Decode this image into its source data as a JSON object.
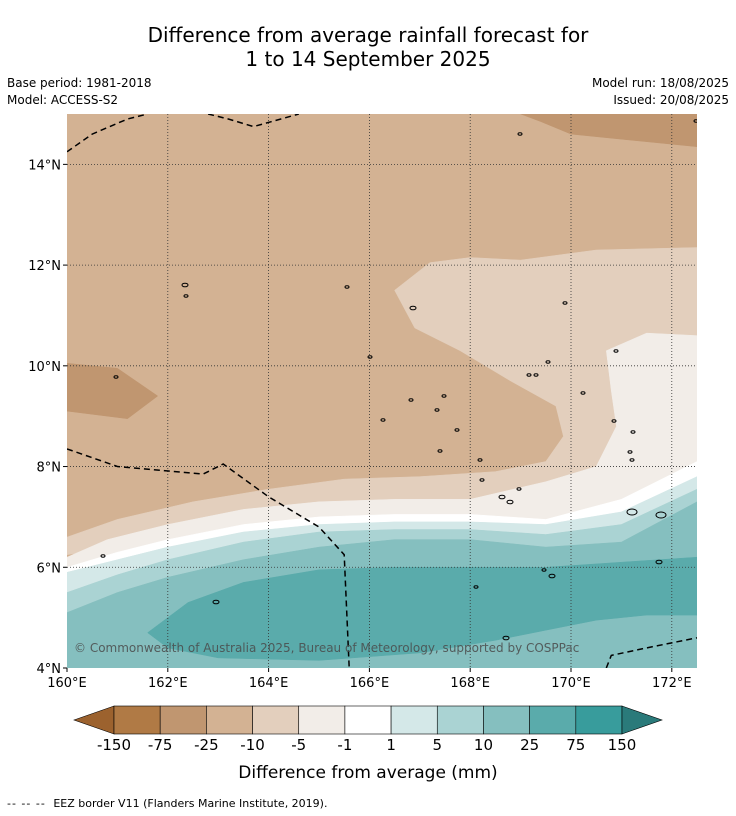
{
  "title_line1": "Difference from average rainfall forecast for",
  "title_line2": "1 to 14 September 2025",
  "base_period": "Base period: 1981-2018",
  "model": "Model: ACCESS-S2",
  "model_run": "Model run: 18/08/2025",
  "issued": "Issued: 20/08/2025",
  "copyright": "© Commonwealth of Australia 2025, Bureau of Meteorology, supported by COSPPac",
  "footnote_symbol": "-- -- --",
  "footnote_text": "EEZ border V11 (Flanders Marine Institute, 2019).",
  "chart_data": {
    "type": "heatmap",
    "xlim": [
      160,
      172.5
    ],
    "ylim": [
      4,
      15
    ],
    "x_ticks": [
      160,
      162,
      164,
      166,
      168,
      170,
      172
    ],
    "x_tick_labels": [
      "160°E",
      "162°E",
      "164°E",
      "166°E",
      "168°E",
      "170°E",
      "172°E"
    ],
    "y_ticks": [
      4,
      6,
      8,
      10,
      12,
      14
    ],
    "y_tick_labels": [
      "4°N",
      "6°N",
      "8°N",
      "10°N",
      "12°N",
      "14°N"
    ],
    "grid": true,
    "colorbar": {
      "label": "Difference from average (mm)",
      "tick_labels": [
        "-150",
        "-75",
        "-25",
        "-10",
        "-5",
        "-1",
        "1",
        "5",
        "10",
        "25",
        "75",
        "150"
      ],
      "colors": [
        "#9c622e",
        "#b07a45",
        "#c09670",
        "#d3b293",
        "#e3cfbd",
        "#f2ede8",
        "#ffffff",
        "#d4e8e8",
        "#aad3d3",
        "#85bfbf",
        "#5aabab",
        "#389c9c",
        "#2a7a7a"
      ]
    },
    "regions": [
      {
        "class": "-25 to -10",
        "color": "#d3b293",
        "polygon": [
          [
            160,
            15
          ],
          [
            172.5,
            15
          ],
          [
            172.5,
            6.6
          ],
          [
            171,
            6.7
          ],
          [
            169.5,
            6.95
          ],
          [
            168,
            7.05
          ],
          [
            166.5,
            7.05
          ],
          [
            165,
            7.0
          ],
          [
            163.5,
            6.85
          ],
          [
            162,
            6.6
          ],
          [
            161,
            6.4
          ],
          [
            160,
            6.25
          ]
        ]
      },
      {
        "class": "-75 to -25",
        "color": "#c09670",
        "polygon": [
          [
            169,
            15
          ],
          [
            172.5,
            15
          ],
          [
            172.5,
            14.35
          ],
          [
            171,
            14.5
          ],
          [
            170,
            14.6
          ],
          [
            169.4,
            14.85
          ]
        ]
      },
      {
        "class": "-75 to -25",
        "color": "#c09670",
        "polygon": [
          [
            160,
            10.05
          ],
          [
            161,
            9.95
          ],
          [
            161.8,
            9.4
          ],
          [
            161.2,
            8.95
          ],
          [
            160,
            9.1
          ]
        ]
      },
      {
        "class": "-10 to -5",
        "color": "#e3cfbd",
        "polygon": [
          [
            172.5,
            12.35
          ],
          [
            170.5,
            12.3
          ],
          [
            169,
            12.1
          ],
          [
            168,
            12.15
          ],
          [
            167.2,
            12.05
          ],
          [
            166.5,
            11.5
          ],
          [
            166.9,
            10.75
          ],
          [
            167.8,
            10.3
          ],
          [
            168.8,
            9.7
          ],
          [
            169.7,
            9.2
          ],
          [
            169.85,
            8.6
          ],
          [
            169.5,
            8.1
          ],
          [
            168.5,
            7.9
          ],
          [
            167,
            7.8
          ],
          [
            165.5,
            7.75
          ],
          [
            164,
            7.55
          ],
          [
            162.5,
            7.3
          ],
          [
            161,
            6.95
          ],
          [
            160,
            6.6
          ],
          [
            160,
            6.25
          ],
          [
            161,
            6.4
          ],
          [
            162,
            6.6
          ],
          [
            163.5,
            6.85
          ],
          [
            165,
            7.0
          ],
          [
            166.5,
            7.05
          ],
          [
            168,
            7.05
          ],
          [
            169.5,
            6.95
          ],
          [
            171,
            6.7
          ],
          [
            172.5,
            6.6
          ]
        ]
      },
      {
        "class": "-5 to -1",
        "color": "#f2ede8",
        "polygon": [
          [
            172.5,
            10.6
          ],
          [
            171.5,
            10.65
          ],
          [
            170.7,
            10.3
          ],
          [
            170.8,
            9.5
          ],
          [
            170.9,
            8.8
          ],
          [
            170.5,
            8.0
          ],
          [
            169.5,
            7.7
          ],
          [
            168,
            7.35
          ],
          [
            166.5,
            7.35
          ],
          [
            165,
            7.3
          ],
          [
            163.5,
            7.15
          ],
          [
            162,
            6.85
          ],
          [
            160.8,
            6.55
          ],
          [
            160,
            6.2
          ],
          [
            160,
            6.0
          ],
          [
            161,
            6.3
          ],
          [
            162,
            6.55
          ],
          [
            163.5,
            6.85
          ],
          [
            165,
            7.0
          ],
          [
            166.5,
            7.05
          ],
          [
            168,
            7.05
          ],
          [
            169.5,
            6.95
          ],
          [
            171,
            7.35
          ],
          [
            172.5,
            8.1
          ]
        ]
      },
      {
        "class": "-1 to 1",
        "color": "#ffffff",
        "polygon": [
          [
            172.5,
            8.1
          ],
          [
            171,
            7.35
          ],
          [
            169.5,
            6.95
          ],
          [
            168,
            7.05
          ],
          [
            166.5,
            7.05
          ],
          [
            165,
            7.0
          ],
          [
            163.5,
            6.85
          ],
          [
            162,
            6.55
          ],
          [
            161,
            6.3
          ],
          [
            160,
            6.0
          ],
          [
            160,
            5.9
          ],
          [
            161,
            6.15
          ],
          [
            162,
            6.4
          ],
          [
            163.5,
            6.7
          ],
          [
            165,
            6.85
          ],
          [
            166.5,
            6.9
          ],
          [
            168,
            6.9
          ],
          [
            169.5,
            6.85
          ],
          [
            171,
            7.1
          ],
          [
            172.5,
            7.8
          ]
        ]
      },
      {
        "class": "1 to 5",
        "color": "#d4e8e8",
        "polygon": [
          [
            172.5,
            7.8
          ],
          [
            171,
            7.1
          ],
          [
            169.5,
            6.85
          ],
          [
            168,
            6.9
          ],
          [
            166.5,
            6.9
          ],
          [
            165,
            6.85
          ],
          [
            163.5,
            6.7
          ],
          [
            162,
            6.4
          ],
          [
            161,
            6.15
          ],
          [
            160,
            5.9
          ],
          [
            160,
            5.5
          ],
          [
            161,
            5.85
          ],
          [
            162,
            6.15
          ],
          [
            163.5,
            6.5
          ],
          [
            165,
            6.7
          ],
          [
            166.5,
            6.75
          ],
          [
            168,
            6.75
          ],
          [
            169.5,
            6.65
          ],
          [
            171,
            6.85
          ],
          [
            172.5,
            7.55
          ]
        ]
      },
      {
        "class": "5 to 10",
        "color": "#aad3d3",
        "polygon": [
          [
            172.5,
            7.55
          ],
          [
            171,
            6.85
          ],
          [
            169.5,
            6.65
          ],
          [
            168,
            6.75
          ],
          [
            166.5,
            6.75
          ],
          [
            165,
            6.7
          ],
          [
            163.5,
            6.5
          ],
          [
            162,
            6.15
          ],
          [
            161,
            5.85
          ],
          [
            160,
            5.5
          ],
          [
            160,
            5.1
          ],
          [
            161,
            5.5
          ],
          [
            162,
            5.8
          ],
          [
            163.5,
            6.15
          ],
          [
            165,
            6.4
          ],
          [
            166.5,
            6.55
          ],
          [
            168,
            6.55
          ],
          [
            169.5,
            6.4
          ],
          [
            171,
            6.5
          ],
          [
            172.5,
            7.3
          ]
        ]
      },
      {
        "class": "10 to 25",
        "color": "#85bfbf",
        "polygon": [
          [
            172.5,
            7.3
          ],
          [
            171,
            6.5
          ],
          [
            169.5,
            6.4
          ],
          [
            168,
            6.55
          ],
          [
            166.5,
            6.55
          ],
          [
            165,
            6.4
          ],
          [
            163.5,
            6.15
          ],
          [
            162,
            5.8
          ],
          [
            161,
            5.5
          ],
          [
            160,
            5.1
          ],
          [
            160,
            4
          ],
          [
            172.5,
            4
          ]
        ]
      },
      {
        "class": "25 to 75",
        "color": "#5aabab",
        "polygon": [
          [
            161.6,
            4.7
          ],
          [
            162.4,
            5.3
          ],
          [
            163.5,
            5.7
          ],
          [
            165,
            5.95
          ],
          [
            166.5,
            6.0
          ],
          [
            168,
            6.0
          ],
          [
            169.5,
            6.0
          ],
          [
            171,
            6.1
          ],
          [
            172.5,
            6.2
          ],
          [
            172.5,
            5.05
          ],
          [
            171.5,
            5.05
          ],
          [
            170.5,
            4.95
          ],
          [
            169.5,
            4.75
          ],
          [
            168.5,
            4.55
          ],
          [
            167,
            4.3
          ],
          [
            165,
            4.15
          ],
          [
            163,
            4.2
          ],
          [
            162,
            4.4
          ]
        ]
      }
    ],
    "eez_borders": [
      [
        [
          160,
          14.25
        ],
        [
          160.5,
          14.6
        ],
        [
          161.2,
          14.9
        ],
        [
          161.6,
          15
        ]
      ],
      [
        [
          162.8,
          15
        ],
        [
          163.2,
          14.9
        ],
        [
          163.7,
          14.75
        ],
        [
          164.6,
          15
        ]
      ],
      [
        [
          160,
          8.35
        ],
        [
          161,
          8.0
        ],
        [
          162.7,
          7.85
        ],
        [
          163.1,
          8.05
        ],
        [
          164,
          7.4
        ],
        [
          165,
          6.8
        ],
        [
          165.5,
          6.25
        ],
        [
          165.6,
          4
        ]
      ],
      [
        [
          170.7,
          4
        ],
        [
          170.8,
          4.25
        ],
        [
          171.5,
          4.4
        ],
        [
          172.5,
          4.6
        ]
      ]
    ]
  }
}
